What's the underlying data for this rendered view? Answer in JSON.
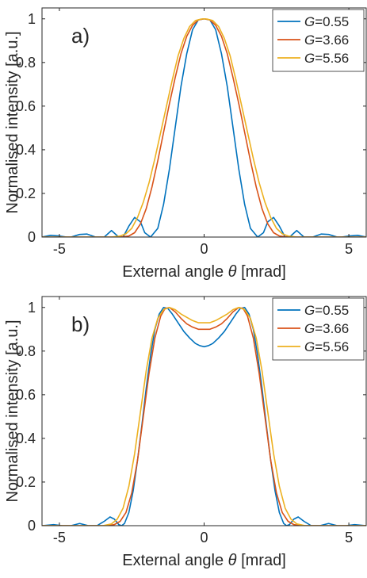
{
  "colors": {
    "G0.55": "#0072BD",
    "G3.66": "#D95319",
    "G5.56": "#EDB120",
    "axis": "#262626",
    "background": "#ffffff"
  },
  "chart_data": [
    {
      "type": "line",
      "panel_label": "a)",
      "xlabel_prefix": "External angle ",
      "xlabel_symbol": "θ",
      "xlabel_suffix": " [mrad]",
      "ylabel": "Normalised intensity [a.u.]",
      "xlim": [
        -5.6,
        5.6
      ],
      "ylim": [
        0,
        1.05
      ],
      "xticks": [
        -5,
        0,
        5
      ],
      "yticks": [
        0,
        0.2,
        0.4,
        0.6,
        0.8,
        1
      ],
      "ytick_labels": [
        "0",
        "0.2",
        "0.4",
        "0.6",
        "0.8",
        "1"
      ],
      "xtick_labels": [
        "-5",
        "0",
        "5"
      ],
      "legend_position": "top-right",
      "grid": false,
      "series": [
        {
          "name": "G=0.55",
          "symbol": "G",
          "value": "=0.55",
          "color": "#0072BD",
          "x": [
            -5.6,
            -5.3,
            -5.0,
            -4.75,
            -4.6,
            -4.3,
            -4.05,
            -3.75,
            -3.45,
            -3.2,
            -2.95,
            -2.8,
            -2.6,
            -2.4,
            -2.2,
            -2.05,
            -1.85,
            -1.6,
            -1.4,
            -1.2,
            -1.0,
            -0.8,
            -0.6,
            -0.4,
            -0.2,
            0,
            0.2,
            0.4,
            0.6,
            0.8,
            1.0,
            1.2,
            1.4,
            1.6,
            1.85,
            2.05,
            2.2,
            2.4,
            2.6,
            2.8,
            2.95,
            3.2,
            3.45,
            3.75,
            4.05,
            4.3,
            4.6,
            4.75,
            5.0,
            5.3,
            5.6
          ],
          "y": [
            0.0,
            0.008,
            0.005,
            0.0,
            0.0,
            0.012,
            0.014,
            0.0,
            0.0,
            0.03,
            0.0,
            0.0,
            0.05,
            0.09,
            0.07,
            0.02,
            0.0,
            0.04,
            0.15,
            0.31,
            0.5,
            0.69,
            0.84,
            0.95,
            0.995,
            1.0,
            0.995,
            0.95,
            0.84,
            0.69,
            0.5,
            0.31,
            0.15,
            0.04,
            0.0,
            0.02,
            0.07,
            0.09,
            0.05,
            0.0,
            0.0,
            0.03,
            0.0,
            0.0,
            0.014,
            0.012,
            0.0,
            0.0,
            0.005,
            0.008,
            0.0
          ]
        },
        {
          "name": "G=3.66",
          "symbol": "G",
          "value": "=3.66",
          "color": "#D95319",
          "x": [
            -5.6,
            -4.0,
            -3.2,
            -2.9,
            -2.6,
            -2.4,
            -2.2,
            -2.0,
            -1.8,
            -1.6,
            -1.4,
            -1.2,
            -1.0,
            -0.8,
            -0.6,
            -0.4,
            -0.2,
            0,
            0.2,
            0.4,
            0.6,
            0.8,
            1.0,
            1.2,
            1.4,
            1.6,
            1.8,
            2.0,
            2.2,
            2.4,
            2.6,
            2.9,
            3.2,
            4.0,
            5.6
          ],
          "y": [
            0.0,
            0.0,
            0.0,
            0.0,
            0.005,
            0.02,
            0.06,
            0.13,
            0.23,
            0.35,
            0.48,
            0.61,
            0.73,
            0.84,
            0.92,
            0.97,
            0.995,
            1.0,
            0.995,
            0.97,
            0.92,
            0.84,
            0.73,
            0.61,
            0.48,
            0.35,
            0.23,
            0.13,
            0.06,
            0.02,
            0.005,
            0.0,
            0.0,
            0.0,
            0.0
          ]
        },
        {
          "name": "G=5.56",
          "symbol": "G",
          "value": "=5.56",
          "color": "#EDB120",
          "x": [
            -5.6,
            -4.0,
            -3.2,
            -2.9,
            -2.7,
            -2.5,
            -2.3,
            -2.1,
            -1.9,
            -1.7,
            -1.5,
            -1.3,
            -1.1,
            -0.9,
            -0.7,
            -0.5,
            -0.3,
            -0.1,
            0,
            0.1,
            0.3,
            0.5,
            0.7,
            0.9,
            1.1,
            1.3,
            1.5,
            1.7,
            1.9,
            2.1,
            2.3,
            2.5,
            2.7,
            2.9,
            3.2,
            4.0,
            5.6
          ],
          "y": [
            0.0,
            0.0,
            0.0,
            0.005,
            0.015,
            0.04,
            0.09,
            0.16,
            0.25,
            0.36,
            0.48,
            0.6,
            0.72,
            0.83,
            0.91,
            0.965,
            0.992,
            0.999,
            1.0,
            0.999,
            0.992,
            0.965,
            0.91,
            0.83,
            0.72,
            0.6,
            0.48,
            0.36,
            0.25,
            0.16,
            0.09,
            0.04,
            0.015,
            0.005,
            0.0,
            0.0,
            0.0
          ]
        }
      ]
    },
    {
      "type": "line",
      "panel_label": "b)",
      "xlabel_prefix": "External angle ",
      "xlabel_symbol": "θ",
      "xlabel_suffix": " [mrad]",
      "ylabel": "Normalised intensity [a.u.]",
      "xlim": [
        -5.6,
        5.6
      ],
      "ylim": [
        0,
        1.05
      ],
      "xticks": [
        -5,
        0,
        5
      ],
      "yticks": [
        0,
        0.2,
        0.4,
        0.6,
        0.8,
        1
      ],
      "ytick_labels": [
        "0",
        "0.2",
        "0.4",
        "0.6",
        "0.8",
        "1"
      ],
      "xtick_labels": [
        "-5",
        "0",
        "5"
      ],
      "legend_position": "top-right",
      "grid": false,
      "series": [
        {
          "name": "G=0.55",
          "symbol": "G",
          "value": "=0.55",
          "color": "#0072BD",
          "x": [
            -5.6,
            -5.2,
            -4.9,
            -4.6,
            -4.3,
            -4.0,
            -3.7,
            -3.45,
            -3.25,
            -3.1,
            -2.95,
            -2.85,
            -2.75,
            -2.6,
            -2.45,
            -2.3,
            -2.15,
            -2.0,
            -1.85,
            -1.7,
            -1.55,
            -1.4,
            -1.25,
            -1.1,
            -0.9,
            -0.7,
            -0.5,
            -0.3,
            -0.15,
            0,
            0.15,
            0.3,
            0.5,
            0.7,
            0.9,
            1.1,
            1.25,
            1.4,
            1.55,
            1.7,
            1.85,
            2.0,
            2.15,
            2.3,
            2.45,
            2.6,
            2.75,
            2.85,
            2.95,
            3.1,
            3.25,
            3.45,
            3.7,
            4.0,
            4.3,
            4.6,
            4.9,
            5.2,
            5.6
          ],
          "y": [
            0.0,
            0.005,
            0.0,
            0.0,
            0.01,
            0.0,
            0.0,
            0.02,
            0.04,
            0.03,
            0.005,
            0.0,
            0.01,
            0.06,
            0.16,
            0.3,
            0.46,
            0.63,
            0.78,
            0.9,
            0.97,
            1.0,
            0.995,
            0.97,
            0.93,
            0.89,
            0.86,
            0.835,
            0.825,
            0.82,
            0.825,
            0.835,
            0.86,
            0.89,
            0.93,
            0.97,
            0.995,
            1.0,
            0.97,
            0.9,
            0.78,
            0.63,
            0.46,
            0.3,
            0.16,
            0.06,
            0.01,
            0.0,
            0.005,
            0.03,
            0.04,
            0.02,
            0.0,
            0.0,
            0.01,
            0.0,
            0.0,
            0.005,
            0.0
          ]
        },
        {
          "name": "G=3.66",
          "symbol": "G",
          "value": "=3.66",
          "color": "#D95319",
          "x": [
            -5.6,
            -4.0,
            -3.4,
            -3.1,
            -2.9,
            -2.7,
            -2.5,
            -2.3,
            -2.1,
            -1.9,
            -1.7,
            -1.5,
            -1.35,
            -1.2,
            -1.0,
            -0.8,
            -0.6,
            -0.4,
            -0.2,
            0,
            0.2,
            0.4,
            0.6,
            0.8,
            1.0,
            1.2,
            1.35,
            1.5,
            1.7,
            1.9,
            2.1,
            2.3,
            2.5,
            2.7,
            2.9,
            3.1,
            3.4,
            4.0,
            5.6
          ],
          "y": [
            0.0,
            0.0,
            0.0,
            0.005,
            0.02,
            0.06,
            0.15,
            0.3,
            0.5,
            0.7,
            0.86,
            0.96,
            0.995,
            1.0,
            0.98,
            0.95,
            0.925,
            0.91,
            0.9,
            0.9,
            0.9,
            0.91,
            0.925,
            0.95,
            0.98,
            1.0,
            0.995,
            0.96,
            0.86,
            0.7,
            0.5,
            0.3,
            0.15,
            0.06,
            0.02,
            0.005,
            0.0,
            0.0,
            0.0
          ]
        },
        {
          "name": "G=5.56",
          "symbol": "G",
          "value": "=5.56",
          "color": "#EDB120",
          "x": [
            -5.6,
            -4.0,
            -3.5,
            -3.2,
            -3.0,
            -2.8,
            -2.6,
            -2.4,
            -2.2,
            -2.0,
            -1.8,
            -1.6,
            -1.4,
            -1.2,
            -1.0,
            -0.8,
            -0.6,
            -0.4,
            -0.2,
            0,
            0.2,
            0.4,
            0.6,
            0.8,
            1.0,
            1.2,
            1.4,
            1.6,
            1.8,
            2.0,
            2.2,
            2.4,
            2.6,
            2.8,
            3.0,
            3.2,
            3.5,
            4.0,
            5.6
          ],
          "y": [
            0.0,
            0.0,
            0.0,
            0.008,
            0.03,
            0.08,
            0.18,
            0.33,
            0.52,
            0.71,
            0.86,
            0.95,
            0.99,
            1.0,
            0.99,
            0.97,
            0.955,
            0.94,
            0.93,
            0.93,
            0.93,
            0.94,
            0.955,
            0.97,
            0.99,
            1.0,
            0.99,
            0.95,
            0.86,
            0.71,
            0.52,
            0.33,
            0.18,
            0.08,
            0.03,
            0.008,
            0.0,
            0.0,
            0.0
          ]
        }
      ]
    }
  ]
}
